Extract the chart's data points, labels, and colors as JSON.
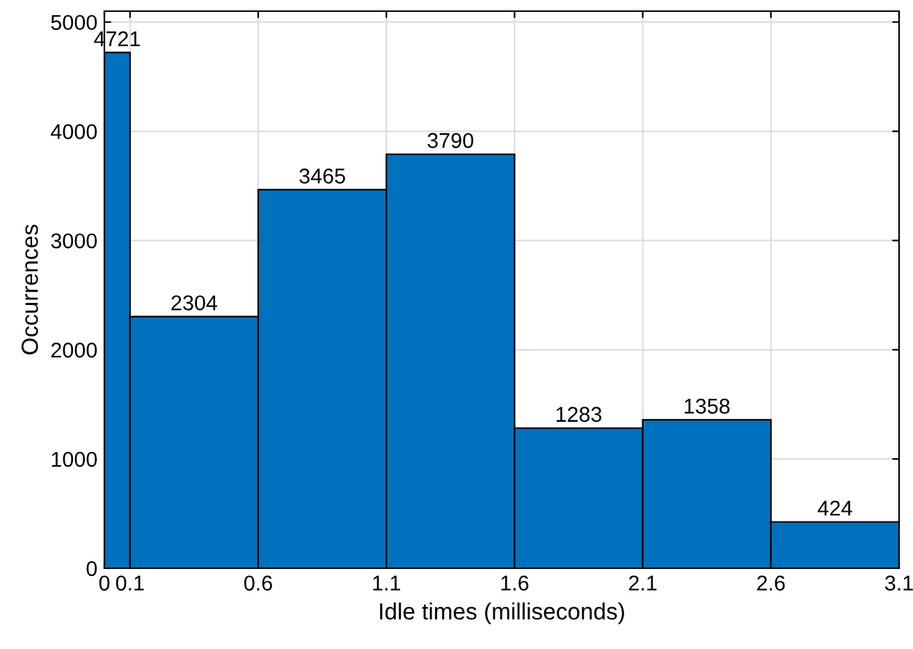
{
  "chart_data": {
    "type": "histogram",
    "xlabel": "Idle times (milliseconds)",
    "ylabel": "Occurrences",
    "bins": [
      0,
      0.1,
      0.6,
      1.1,
      1.6,
      2.1,
      2.6,
      3.1
    ],
    "values": [
      4721,
      2304,
      3465,
      3790,
      1283,
      1358,
      424
    ],
    "color": "#0072bd",
    "data_labels": true,
    "xlim": [
      0,
      3.1
    ],
    "xticks": [
      0,
      0.1,
      0.6,
      1.1,
      1.6,
      2.1,
      2.6,
      3.1
    ],
    "ylim": [
      0,
      5100
    ],
    "yticks": [
      0,
      1000,
      2000,
      3000,
      4000,
      5000
    ],
    "grid": true
  }
}
